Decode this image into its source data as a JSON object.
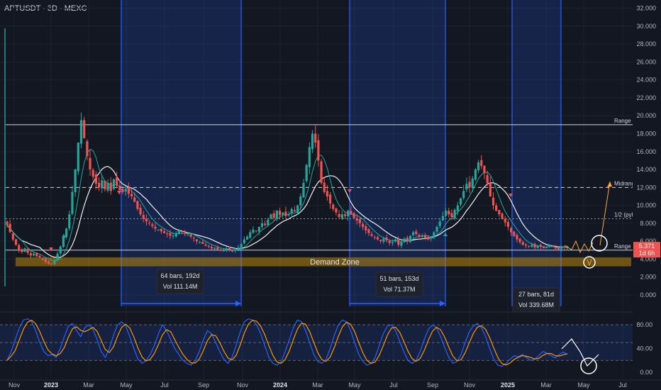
{
  "header": {
    "symbol_label": "APTUSDT · 3D · MEXC"
  },
  "chart_data": {
    "type": "candlestick",
    "price_axis": {
      "min": 0,
      "max": 32,
      "ticks": [
        0,
        2,
        4,
        6,
        8,
        10,
        12,
        14,
        16,
        18,
        20,
        22,
        24,
        26,
        28,
        30,
        32
      ],
      "tick_labels": [
        "0.000",
        "2.000",
        "4.000",
        "6.000",
        "8.000",
        "10.000",
        "12.000",
        "14.000",
        "16.000",
        "18.000",
        "20.000",
        "22.000",
        "24.000",
        "26.000",
        "28.000",
        "30.000",
        "32.000"
      ]
    },
    "time_axis": {
      "labels": [
        "Nov",
        "2023",
        "Mar",
        "May",
        "Jul",
        "Sep",
        "Nov",
        "2024",
        "Mar",
        "May",
        "Jul",
        "Sep",
        "Nov",
        "2025",
        "Mar",
        "May",
        "Jul"
      ],
      "bold": [
        "2023",
        "2024",
        "2025"
      ]
    },
    "closes": [
      7.8,
      7.0,
      6.2,
      5.6,
      5.0,
      4.8,
      5.2,
      4.7,
      4.4,
      4.6,
      4.3,
      4.2,
      4.0,
      3.7,
      3.5,
      3.4,
      3.9,
      4.6,
      5.4,
      6.4,
      7.4,
      9.0,
      11.5,
      14.0,
      17.0,
      19.5,
      17.5,
      15.5,
      14.0,
      13.2,
      12.4,
      12.0,
      12.8,
      11.8,
      12.5,
      11.6,
      12.9,
      12.2,
      11.7,
      11.5,
      11.8,
      11.3,
      11.0,
      10.4,
      9.6,
      9.0,
      8.5,
      8.2,
      8.0,
      7.7,
      7.4,
      7.3,
      7.1,
      6.9,
      6.8,
      6.6,
      6.6,
      6.9,
      7.2,
      7.0,
      6.8,
      6.7,
      6.5,
      6.3,
      6.0,
      5.9,
      5.7,
      5.5,
      5.4,
      5.2,
      5.3,
      5.1,
      5.0,
      5.0,
      5.2,
      5.0,
      4.9,
      5.1,
      5.3,
      5.7,
      6.2,
      6.5,
      7.0,
      7.3,
      7.1,
      7.6,
      8.0,
      7.8,
      8.4,
      9.0,
      8.6,
      9.4,
      8.9,
      9.2,
      8.8,
      9.0,
      9.6,
      9.3,
      10.0,
      11.0,
      12.5,
      14.5,
      16.5,
      18.0,
      17.0,
      15.0,
      12.5,
      11.5,
      11.0,
      10.2,
      9.6,
      9.2,
      8.7,
      9.0,
      8.8,
      9.4,
      9.0,
      8.6,
      8.3,
      8.0,
      7.6,
      7.2,
      6.9,
      6.6,
      6.4,
      6.2,
      6.0,
      6.3,
      6.1,
      5.8,
      5.9,
      6.2,
      5.6,
      5.9,
      6.3,
      6.0,
      6.6,
      7.0,
      6.8,
      6.5,
      6.6,
      6.4,
      6.2,
      6.5,
      7.0,
      7.6,
      8.2,
      8.8,
      9.4,
      9.0,
      8.7,
      9.5,
      10.0,
      10.8,
      11.6,
      12.4,
      12.0,
      13.0,
      14.0,
      14.8,
      14.4,
      13.6,
      12.5,
      11.0,
      10.0,
      9.4,
      9.0,
      8.5,
      8.1,
      7.6,
      7.0,
      6.6,
      6.2,
      5.9,
      5.6,
      5.5,
      5.4,
      5.6,
      5.3,
      5.5,
      5.4,
      5.2,
      5.3,
      5.6,
      5.4,
      5.2,
      5.1,
      5.4,
      5.3,
      5.4
    ],
    "last_price": "5.371",
    "countdown": "1d 6h",
    "levels": [
      {
        "name": "Range High",
        "label": "Range H",
        "price": 19.0
      },
      {
        "name": "Midrange",
        "label": "Midrang",
        "price": 12.0
      },
      {
        "name": "1/2",
        "label": "1/2 (pyl",
        "price": 8.5
      },
      {
        "name": "Range Low",
        "label": "Range L",
        "price": 5.0
      }
    ],
    "demand_zone": {
      "label": "Demand Zone",
      "from": 3.2,
      "to": 4.2
    },
    "measurements": [
      {
        "bars": "64 bars, 192d",
        "vol": "Vol 111.14M"
      },
      {
        "bars": "51 bars, 153d",
        "vol": "Vol 71.37M"
      },
      {
        "bars": "27 bars, 81d",
        "vol": "Vol 339.68M"
      }
    ],
    "oscillator": {
      "ticks": [
        0,
        40,
        80
      ],
      "tick_labels": [
        "0.00",
        "40.00",
        "80.00"
      ],
      "k": [
        20,
        35,
        55,
        75,
        88,
        90,
        85,
        70,
        50,
        35,
        28,
        30,
        25,
        40,
        60,
        78,
        82,
        70,
        60,
        75,
        80,
        72,
        55,
        35,
        25,
        40,
        62,
        80,
        85,
        78,
        60,
        40,
        22,
        15,
        20,
        30,
        45,
        65,
        80,
        70,
        55,
        40,
        30,
        20,
        15,
        12,
        20,
        35,
        55,
        70,
        65,
        50,
        35,
        22,
        15,
        25,
        45,
        68,
        85,
        90,
        88,
        80,
        65,
        45,
        25,
        15,
        12,
        18,
        35,
        55,
        75,
        88,
        85,
        70,
        50,
        30,
        18,
        15,
        22,
        40,
        62,
        80,
        88,
        85,
        70,
        50,
        30,
        18,
        12,
        15,
        25,
        45,
        65,
        78,
        80,
        70,
        52,
        35,
        20,
        15,
        20,
        35,
        55,
        72,
        80,
        75,
        60,
        42,
        25,
        15,
        18,
        30,
        50,
        68,
        78,
        82,
        75,
        60,
        40,
        22,
        12,
        10,
        15,
        22,
        28,
        26,
        30,
        25,
        20,
        22,
        28,
        35,
        32,
        28,
        24,
        30,
        34,
        30
      ]
    }
  }
}
